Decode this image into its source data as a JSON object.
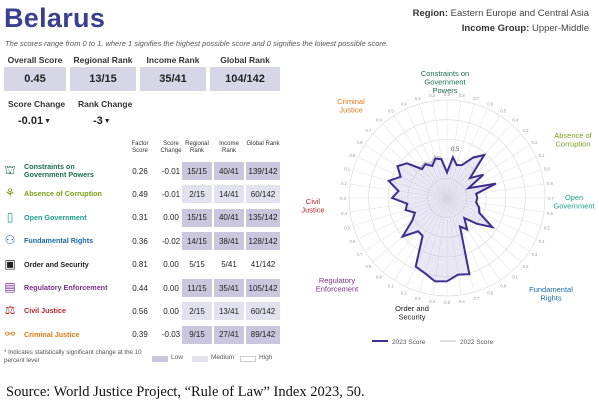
{
  "title": "Belarus",
  "region_label": "Region:",
  "region_value": "Eastern Europe and Central Asia",
  "income_label": "Income Group:",
  "income_value": "Upper-Middle",
  "subtitle": "The scores range from 0 to 1, where 1 signifies the highest possible score and 0 signifies the lowest possible score.",
  "kpis": [
    {
      "label": "Overall Score",
      "value": "0.45"
    },
    {
      "label": "Regional Rank",
      "value": "13/15"
    },
    {
      "label": "Income Rank",
      "value": "35/41"
    },
    {
      "label": "Global Rank",
      "value": "104/142"
    }
  ],
  "changes": [
    {
      "label": "Score Change",
      "value": "-0.01"
    },
    {
      "label": "Rank Change",
      "value": "-3"
    }
  ],
  "down_arrow": "▼",
  "table_headers": [
    "Factor Score",
    "Score Change",
    "Regional Rank",
    "Income Rank",
    "Global Rank"
  ],
  "factors": [
    {
      "name": "Constraints on Government Powers",
      "icon": "scales-building-icon",
      "color": "#1a6e4a",
      "score": "0.26",
      "change": "-0.01",
      "regional": "15/15",
      "income": "40/41",
      "global": "139/142",
      "level": "low"
    },
    {
      "name": "Absence of Corruption",
      "icon": "handshake-icon",
      "color": "#7aa01c",
      "score": "0.49",
      "change": "-0.01",
      "regional": "2/15",
      "income": "14/41",
      "global": "60/142",
      "level": "medium"
    },
    {
      "name": "Open Government",
      "icon": "door-icon",
      "color": "#1a9e8a",
      "score": "0.31",
      "change": "0.00",
      "regional": "15/15",
      "income": "40/41",
      "global": "135/142",
      "level": "low"
    },
    {
      "name": "Fundamental Rights",
      "icon": "people-icon",
      "color": "#1b6aa6",
      "score": "0.36",
      "change": "-0.02",
      "regional": "14/15",
      "income": "38/41",
      "global": "128/142",
      "level": "low"
    },
    {
      "name": "Order and Security",
      "icon": "lock-icon",
      "color": "#222222",
      "score": "0.81",
      "change": "0.00",
      "regional": "5/15",
      "income": "5/41",
      "global": "41/142",
      "level": "high"
    },
    {
      "name": "Regulatory Enforcement",
      "icon": "clipboard-icon",
      "color": "#7b2f8a",
      "score": "0.44",
      "change": "0.00",
      "regional": "11/15",
      "income": "35/41",
      "global": "105/142",
      "level": "low"
    },
    {
      "name": "Civil Justice",
      "icon": "scales-icon",
      "color": "#b5262c",
      "score": "0.56",
      "change": "0.00",
      "regional": "2/15",
      "income": "13/41",
      "global": "60/142",
      "level": "medium"
    },
    {
      "name": "Criminal Justice",
      "icon": "handcuffs-icon",
      "color": "#e07a16",
      "score": "0.39",
      "change": "-0.03",
      "regional": "9/15",
      "income": "27/41",
      "global": "89/142",
      "level": "low"
    }
  ],
  "footnote": "* Indicates statistically significant change at the 10 percent level",
  "level_legend": [
    {
      "label": "Low",
      "color": "#c9c6de"
    },
    {
      "label": "Medium",
      "color": "#e2e1ee"
    },
    {
      "label": "High",
      "color": "#ffffff"
    }
  ],
  "chart_data": {
    "type": "radar",
    "axes": [
      {
        "label": "Constraints on Government Powers",
        "color": "#1a6e4a"
      },
      {
        "label": "Absence of Corruption",
        "color": "#7aa01c"
      },
      {
        "label": "Open Government",
        "color": "#1a9e8a"
      },
      {
        "label": "Fundamental Rights",
        "color": "#1b6aa6"
      },
      {
        "label": "Order and Security",
        "color": "#222222"
      },
      {
        "label": "Regulatory Enforcement",
        "color": "#7b2f8a"
      },
      {
        "label": "Civil Justice",
        "color": "#b5262c"
      },
      {
        "label": "Criminal Justice",
        "color": "#e07a16"
      }
    ],
    "spokes": 44,
    "scale_ticks": [
      "0.1",
      "0.2",
      "0.3",
      "0.4",
      "0.5",
      "0.6",
      "0.7",
      "0.8",
      "0.9"
    ],
    "spoke_tick_labels": [
      "0.9",
      "0.8",
      "0.7",
      "0.6",
      "0.5",
      "0.4",
      "0.3",
      "0.2",
      "0.1"
    ],
    "center_label": "0.5",
    "ylim": [
      0,
      1
    ],
    "series": [
      {
        "name": "2023 Score",
        "color": "#3f2d8f",
        "values": [
          0.26,
          0.42,
          0.35,
          0.37,
          0.49,
          0.58,
          0.31,
          0.44,
          0.24,
          0.52,
          0.3,
          0.31,
          0.3,
          0.34,
          0.36,
          0.55,
          0.4,
          0.27,
          0.38,
          0.32,
          0.81,
          0.79,
          0.85,
          0.86,
          0.8,
          0.77,
          0.46,
          0.45,
          0.6,
          0.42,
          0.36,
          0.44,
          0.41,
          0.56,
          0.5,
          0.62,
          0.52,
          0.6,
          0.54,
          0.39,
          0.41,
          0.36,
          0.42,
          0.4
        ]
      },
      {
        "name": "2022 Score",
        "color": "#bbbbbb",
        "values": [
          0.27,
          0.42,
          0.36,
          0.37,
          0.5,
          0.59,
          0.31,
          0.45,
          0.25,
          0.52,
          0.31,
          0.31,
          0.3,
          0.35,
          0.38,
          0.56,
          0.4,
          0.28,
          0.4,
          0.33,
          0.81,
          0.79,
          0.85,
          0.86,
          0.8,
          0.77,
          0.46,
          0.45,
          0.6,
          0.42,
          0.36,
          0.44,
          0.41,
          0.56,
          0.5,
          0.62,
          0.52,
          0.6,
          0.54,
          0.41,
          0.43,
          0.39,
          0.45,
          0.42
        ]
      }
    ]
  },
  "source": "Source: World Justice Project, “Rule of Law” Index 2023, 50."
}
